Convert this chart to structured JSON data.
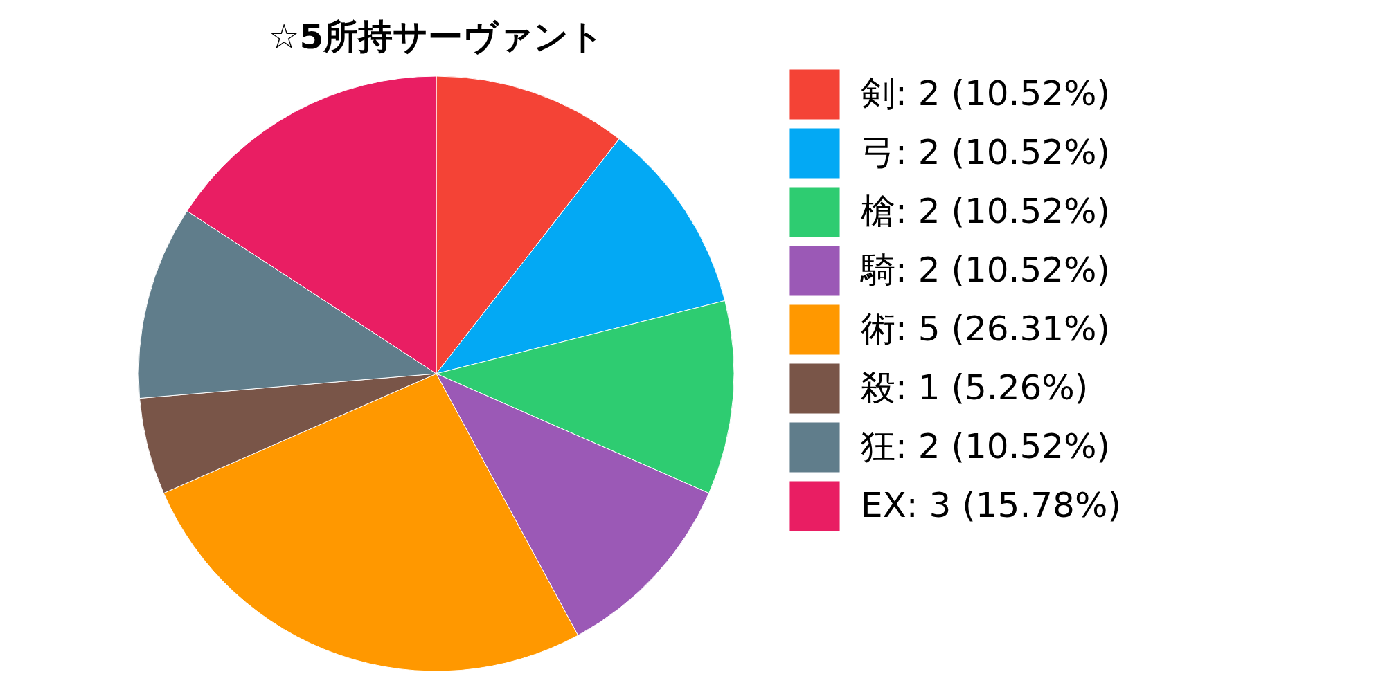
{
  "chart_data": {
    "type": "pie",
    "title": "☆5所持サーヴァント",
    "categories": [
      "剣: 2 (10.52%)",
      "弓: 2 (10.52%)",
      "槍: 2 (10.52%)",
      "騎: 2 (10.52%)",
      "術: 5 (26.31%)",
      "殺: 1 (5.26%)",
      "狂: 2 (10.52%)",
      "EX: 3 (15.78%)"
    ],
    "values": [
      2,
      2,
      2,
      2,
      5,
      1,
      2,
      3
    ],
    "colors": [
      "#f44336",
      "#03a9f4",
      "#2ecc71",
      "#9b59b6",
      "#ff9800",
      "#795548",
      "#607d8b",
      "#e91e63"
    ],
    "legend": "right"
  }
}
